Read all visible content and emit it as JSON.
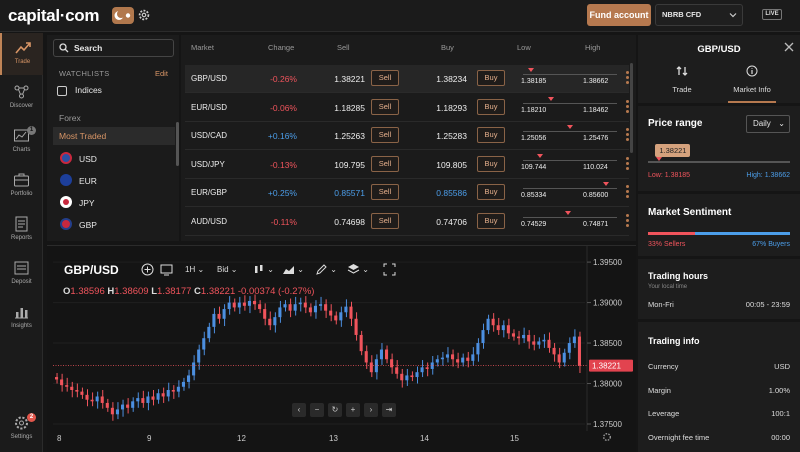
{
  "header": {
    "logo": "capital·com",
    "fund_account": "Fund account",
    "account": "NBRB CFD",
    "live": "LIVE"
  },
  "sidenav": [
    {
      "label": "Trade",
      "icon": "trend-icon",
      "active": true
    },
    {
      "label": "Discover",
      "icon": "network-icon"
    },
    {
      "label": "Charts",
      "icon": "chart-icon",
      "badge": "1"
    },
    {
      "label": "Portfolio",
      "icon": "briefcase-icon"
    },
    {
      "label": "Reports",
      "icon": "report-icon"
    },
    {
      "label": "Deposit",
      "icon": "wallet-icon"
    },
    {
      "label": "Insights",
      "icon": "insights-icon"
    },
    {
      "label": "Settings",
      "icon": "gear-icon",
      "badge": "2"
    }
  ],
  "watchlist": {
    "search": "Search",
    "heading": "WATCHLISTS",
    "edit": "Edit",
    "indices": "Indices",
    "forex": "Forex",
    "most_traded": "Most Traded",
    "currencies": [
      {
        "code": "USD",
        "color": "#2b4fa3"
      },
      {
        "code": "EUR",
        "color": "#1d3f9b"
      },
      {
        "code": "JPY",
        "color": "#ffffff"
      },
      {
        "code": "GBP",
        "color": "#c8283e"
      }
    ]
  },
  "market": {
    "columns": {
      "market": "Market",
      "change": "Change",
      "sell": "Sell",
      "buy": "Buy",
      "low": "Low",
      "high": "High"
    },
    "sell_label": "Sell",
    "buy_label": "Buy",
    "rows": [
      {
        "symbol": "GBP/USD",
        "change": "-0.26%",
        "dir": "neg",
        "sell": "1.38221",
        "buy": "1.38234",
        "low": "1.38185",
        "high": "1.38662",
        "sell_color": "",
        "pos": 0.08
      },
      {
        "symbol": "EUR/USD",
        "change": "-0.06%",
        "dir": "neg",
        "sell": "1.18285",
        "buy": "1.18293",
        "low": "1.18210",
        "high": "1.18462",
        "sell_color": "",
        "pos": 0.3
      },
      {
        "symbol": "USD/CAD",
        "change": "+0.16%",
        "dir": "pos",
        "sell": "1.25263",
        "buy": "1.25283",
        "low": "1.25056",
        "high": "1.25476",
        "sell_color": "",
        "pos": 0.5
      },
      {
        "symbol": "USD/JPY",
        "change": "-0.13%",
        "dir": "neg",
        "sell": "109.795",
        "buy": "109.805",
        "low": "109.744",
        "high": "110.024",
        "sell_color": "",
        "pos": 0.18
      },
      {
        "symbol": "EUR/GBP",
        "change": "+0.25%",
        "dir": "pos",
        "sell": "0.85571",
        "buy": "0.85586",
        "low": "0.85334",
        "high": "0.85600",
        "sell_color": "pos",
        "pos": 0.88
      },
      {
        "symbol": "AUD/USD",
        "change": "-0.11%",
        "dir": "neg",
        "sell": "0.74698",
        "buy": "0.74706",
        "low": "0.74529",
        "high": "0.74871",
        "sell_color": "",
        "pos": 0.48
      }
    ]
  },
  "chart": {
    "symbol": "GBP/USD",
    "timeframe": "1H",
    "price_type": "Bid",
    "ohlc": {
      "o_label": "O",
      "o": "1.38596",
      "h_label": "H",
      "h": "1.38609",
      "l_label": "L",
      "l": "1.38177",
      "c_label": "C",
      "c": "1.38221",
      "change": "-0.00374 (-0.27%)"
    },
    "price_tag": "1.38221",
    "y_labels": [
      "1.39500",
      "1.39000",
      "1.38500",
      "1.38000",
      "1.37500"
    ],
    "x_labels": [
      "8",
      "9",
      "12",
      "13",
      "14",
      "15"
    ]
  },
  "chart_data": {
    "type": "candlestick",
    "title": "GBP/USD",
    "ylim": [
      1.375,
      1.396
    ],
    "x": [
      "8",
      "9",
      "12",
      "13",
      "14",
      "15"
    ],
    "closes": [
      1.3805,
      1.3798,
      1.3796,
      1.3792,
      1.379,
      1.3786,
      1.378,
      1.3778,
      1.3784,
      1.3776,
      1.377,
      1.3762,
      1.3768,
      1.3774,
      1.377,
      1.3778,
      1.3782,
      1.3776,
      1.3784,
      1.378,
      1.3788,
      1.3784,
      1.3792,
      1.379,
      1.3796,
      1.3802,
      1.381,
      1.3826,
      1.3842,
      1.3856,
      1.387,
      1.3886,
      1.388,
      1.3892,
      1.39,
      1.3894,
      1.39,
      1.3896,
      1.3902,
      1.3898,
      1.3892,
      1.388,
      1.3872,
      1.3882,
      1.3894,
      1.3898,
      1.389,
      1.3898,
      1.39,
      1.3894,
      1.3888,
      1.3896,
      1.3898,
      1.389,
      1.3884,
      1.3878,
      1.3888,
      1.3895,
      1.388,
      1.386,
      1.384,
      1.3826,
      1.3814,
      1.383,
      1.3842,
      1.383,
      1.382,
      1.3812,
      1.3804,
      1.381,
      1.3808,
      1.3814,
      1.382,
      1.3818,
      1.3826,
      1.383,
      1.3832,
      1.3836,
      1.383,
      1.3826,
      1.3832,
      1.3828,
      1.3836,
      1.385,
      1.3866,
      1.388,
      1.3872,
      1.3866,
      1.3872,
      1.3862,
      1.3858,
      1.3856,
      1.386,
      1.3852,
      1.3848,
      1.3852,
      1.3854,
      1.3844,
      1.3836,
      1.3826,
      1.3838,
      1.385,
      1.3858,
      1.3822
    ],
    "current": 1.38221
  },
  "right_panel": {
    "symbol": "GBP/USD",
    "tab_trade": "Trade",
    "tab_info": "Market Info",
    "price_range_title": "Price range",
    "range_select": "Daily",
    "range_value": "1.38221",
    "range_position": 0.08,
    "low": "Low: 1.38185",
    "high": "High: 1.38662",
    "sentiment_title": "Market Sentiment",
    "sellers": "33% Sellers",
    "buyers": "67% Buyers",
    "sellers_pct": 0.33,
    "hours_title": "Trading hours",
    "hours_sub": "Your local time",
    "hours_days": "Mon-Fri",
    "hours_time": "00:05 - 23:59",
    "info_title": "Trading info",
    "info": [
      {
        "k": "Currency",
        "v": "USD"
      },
      {
        "k": "Margin",
        "v": "1.00%"
      },
      {
        "k": "Leverage",
        "v": "100:1"
      },
      {
        "k": "Overnight fee time",
        "v": "00:00"
      }
    ]
  },
  "colors": {
    "accent": "#b6794f",
    "up": "#4c8fe0",
    "down": "#f0545c"
  }
}
